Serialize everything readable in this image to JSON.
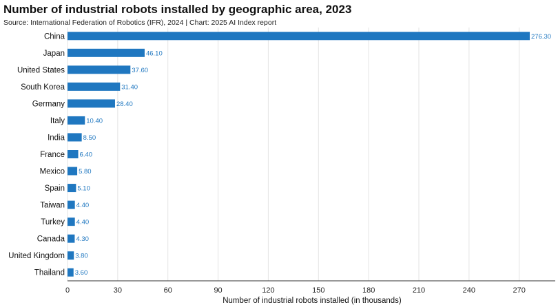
{
  "chart_data": {
    "type": "bar",
    "orientation": "horizontal",
    "title": "Number of industrial robots installed by geographic area, 2023",
    "subtitle": "Source: International Federation of Robotics (IFR), 2024 | Chart: 2025 AI Index report",
    "xlabel": "Number of industrial robots installed (in thousands)",
    "ylabel": "",
    "categories": [
      "China",
      "Japan",
      "United States",
      "South Korea",
      "Germany",
      "Italy",
      "India",
      "France",
      "Mexico",
      "Spain",
      "Taiwan",
      "Turkey",
      "Canada",
      "United Kingdom",
      "Thailand"
    ],
    "values": [
      276.3,
      46.1,
      37.6,
      31.4,
      28.4,
      10.4,
      8.5,
      6.4,
      5.8,
      5.1,
      4.4,
      4.4,
      4.3,
      3.8,
      3.6
    ],
    "value_labels": [
      "276.30",
      "46.10",
      "37.60",
      "31.40",
      "28.40",
      "10.40",
      "8.50",
      "6.40",
      "5.80",
      "5.10",
      "4.40",
      "4.40",
      "4.30",
      "3.80",
      "3.60"
    ],
    "xlim": [
      0,
      280
    ],
    "xticks": [
      0,
      30,
      60,
      90,
      120,
      150,
      180,
      210,
      240,
      270
    ],
    "xtick_labels": [
      "0",
      "30",
      "60",
      "90",
      "120",
      "150",
      "180",
      "210",
      "240",
      "270"
    ],
    "grid": true,
    "legend": "none",
    "bar_color": "#1f77c0",
    "value_label_color": "#1f77c0",
    "grid_color": "#e3e3e3"
  }
}
